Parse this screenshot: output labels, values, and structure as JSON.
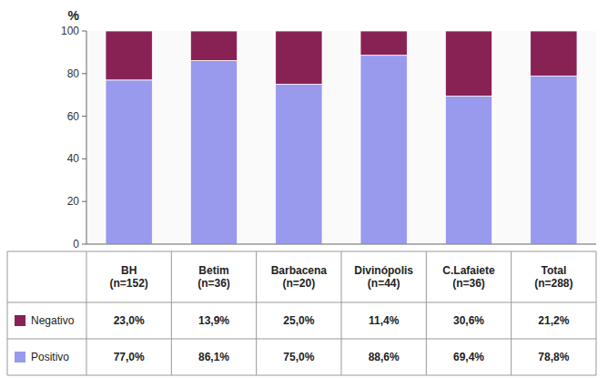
{
  "chart_data": {
    "type": "bar",
    "stacked": true,
    "grid": false,
    "y_label": "%",
    "categories": [
      "BH\n(n=152)",
      "Betim\n(n=36)",
      "Barbacena\n(n=20)",
      "Divinópolis\n(n=44)",
      "C.Lafaiete\n(n=36)",
      "Total\n(n=288)"
    ],
    "series": [
      {
        "name": "Positivo",
        "color": "#9999ee",
        "values": [
          77.0,
          86.1,
          75.0,
          88.6,
          69.4,
          78.8
        ],
        "value_labels": [
          "77,0%",
          "86,1%",
          "75,0%",
          "88,6%",
          "69,4%",
          "78,8%"
        ]
      },
      {
        "name": "Negativo",
        "color": "#882255",
        "values": [
          23.0,
          13.9,
          25.0,
          11.4,
          30.6,
          21.2
        ],
        "value_labels": [
          "23,0%",
          "13,9%",
          "25,0%",
          "11,4%",
          "30,6%",
          "21,2%"
        ]
      }
    ],
    "ylim": [
      0,
      100
    ],
    "yticks": [
      0,
      20,
      40,
      60,
      80,
      100
    ]
  }
}
